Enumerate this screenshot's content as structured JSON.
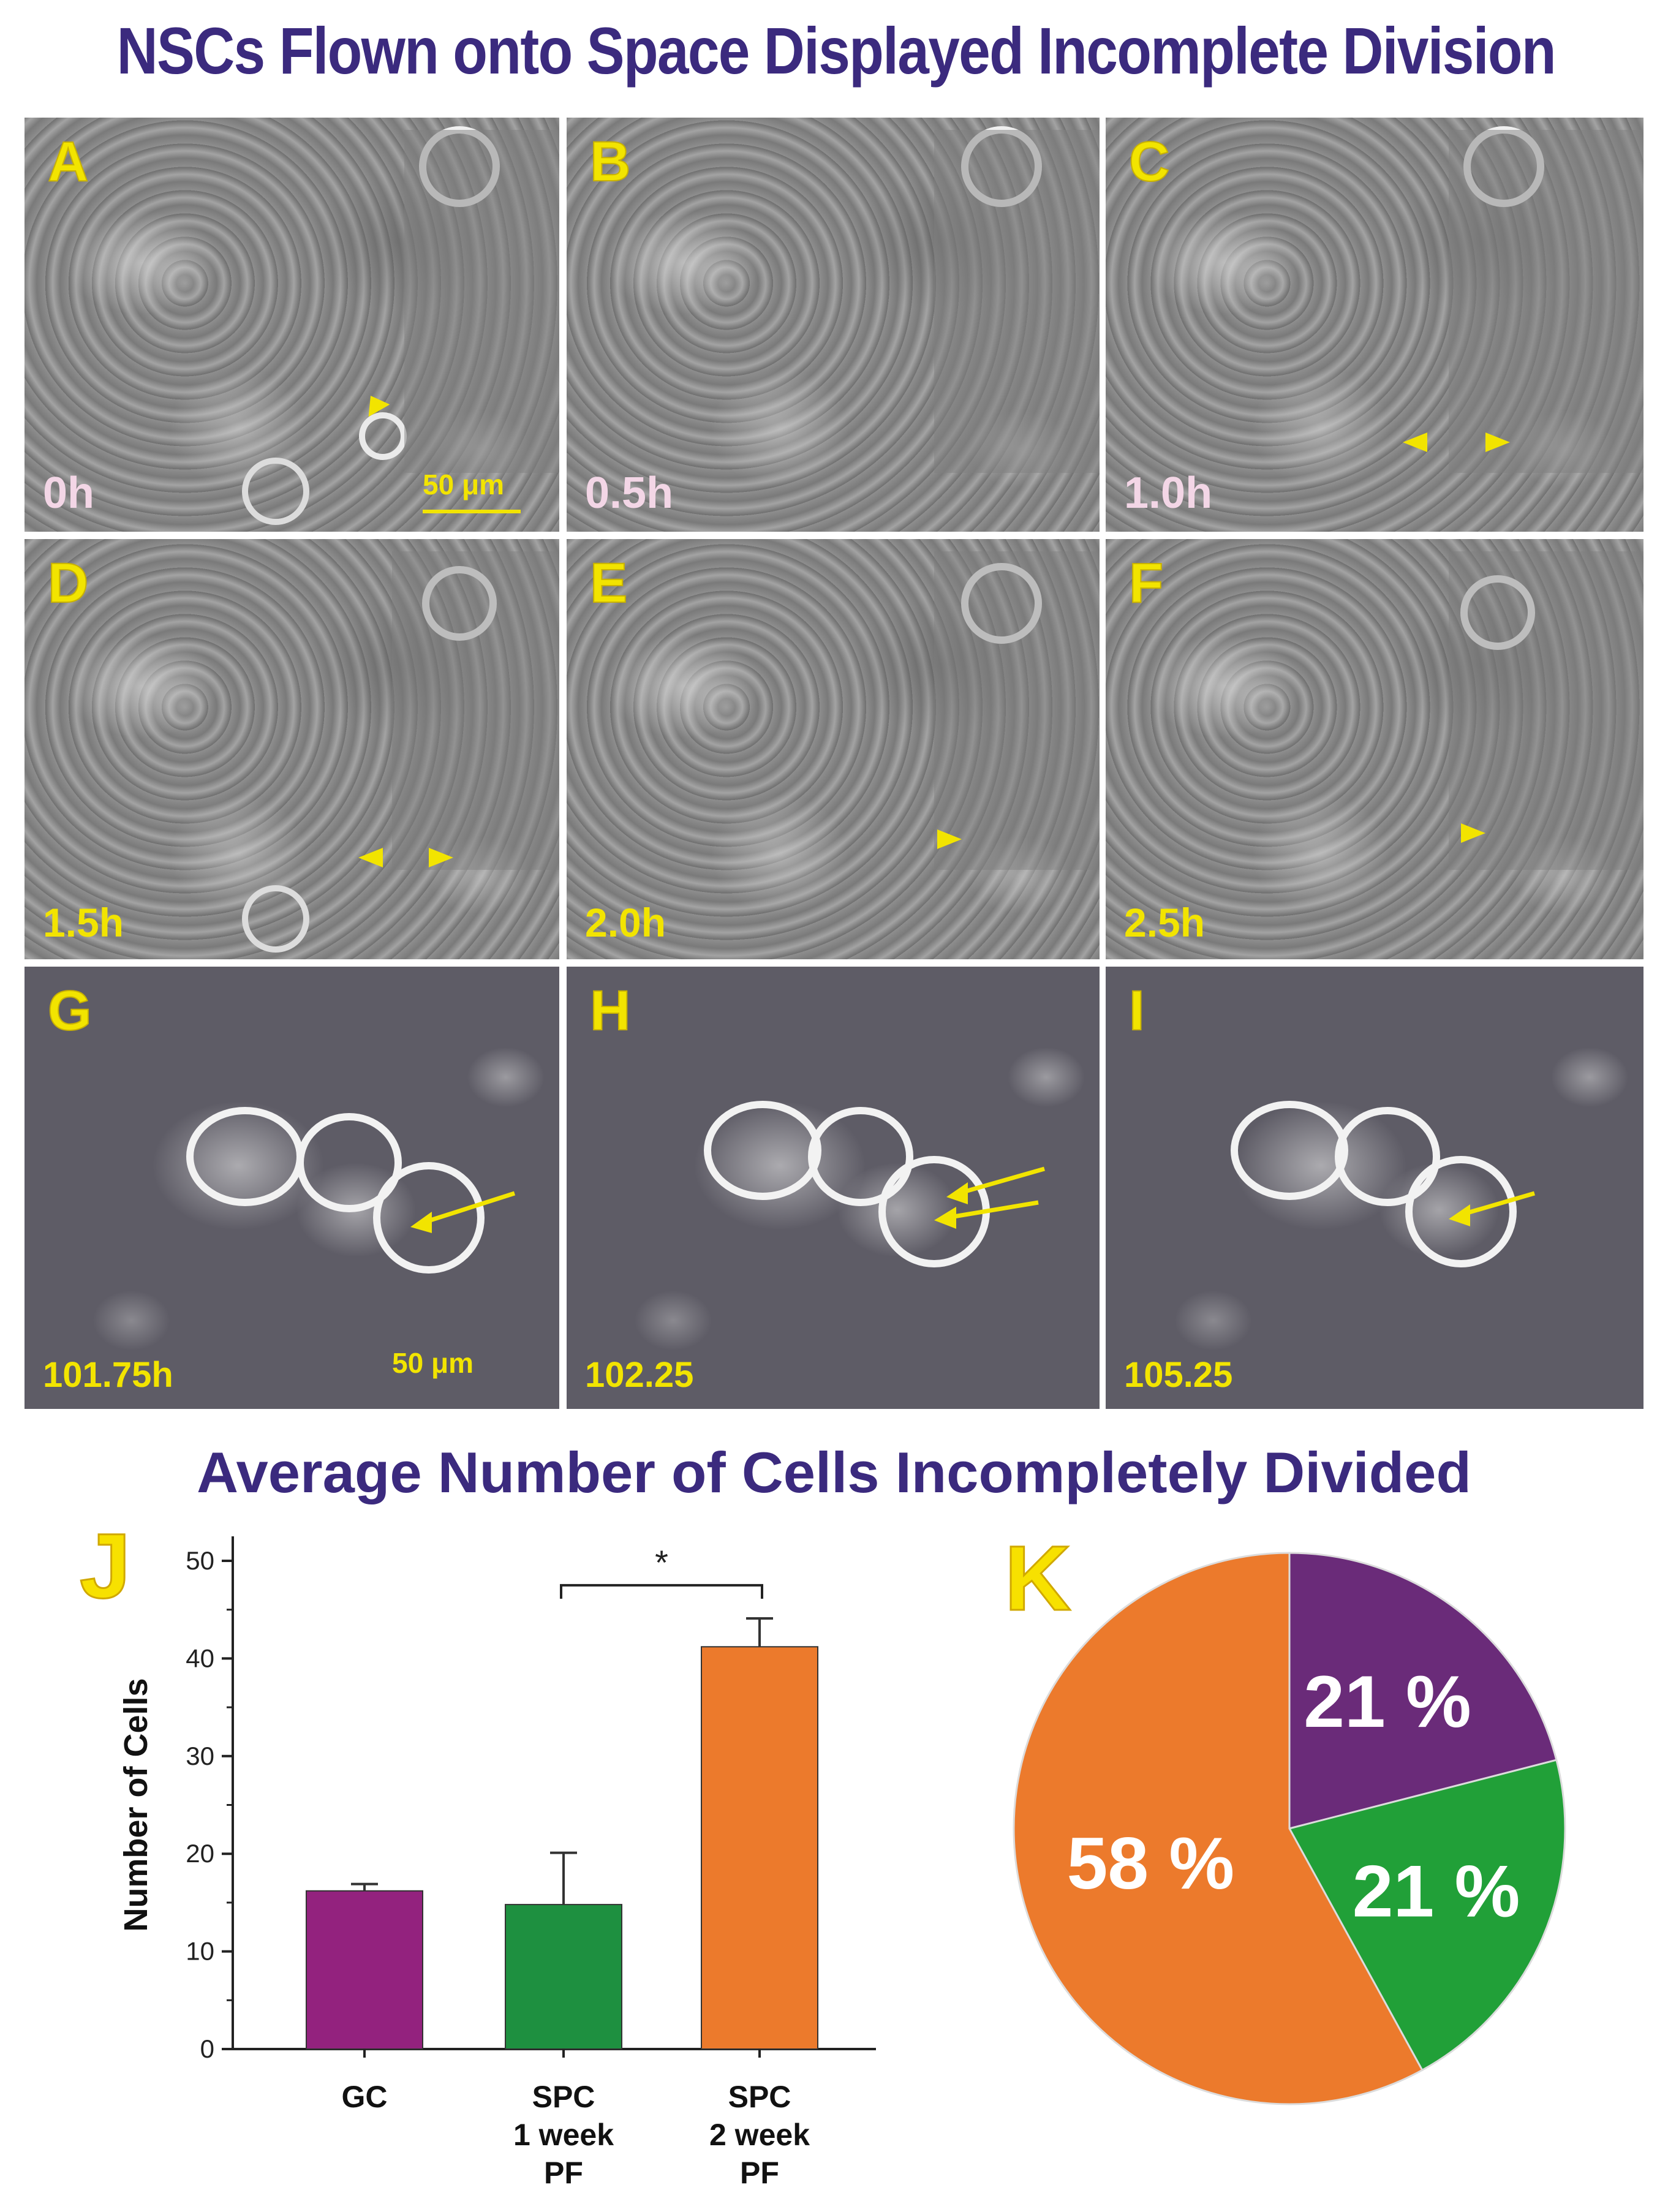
{
  "title": "NSCs Flown onto Space Displayed Incomplete Division",
  "panels": [
    {
      "letter": "A",
      "time": "0h"
    },
    {
      "letter": "B",
      "time": "0.5h"
    },
    {
      "letter": "C",
      "time": "1.0h"
    },
    {
      "letter": "D",
      "time": "1.5h"
    },
    {
      "letter": "E",
      "time": "2.0h"
    },
    {
      "letter": "F",
      "time": "2.5h"
    },
    {
      "letter": "G",
      "time": "101.75h"
    },
    {
      "letter": "H",
      "time": "102.25"
    },
    {
      "letter": "I",
      "time": "105.25"
    }
  ],
  "scale_bars": {
    "top": "50 μm",
    "bottom": "50 μm"
  },
  "colors": {
    "title": "#3b2a7e",
    "marker": "#f2e400",
    "gc": "#93227e",
    "spc1": "#1e9040",
    "spc2": "#ec7a2c",
    "pie_purple": "#6a2b79",
    "pie_green": "#21a038",
    "pie_orange": "#ec7a2c"
  },
  "chart_data": [
    {
      "type": "bar",
      "panel_letter": "J",
      "title": "Average Number of Cells Incompletely Divided",
      "categories": [
        "GC",
        "SPC\n1 week\nPF",
        "SPC\n2 week\nPF"
      ],
      "category_lines": [
        [
          "GC"
        ],
        [
          "SPC",
          "1 week",
          "PF"
        ],
        [
          "SPC",
          "2 week",
          "PF"
        ]
      ],
      "values": [
        16.2,
        14.8,
        41.2
      ],
      "errors": [
        0.7,
        5.3,
        2.9
      ],
      "ylabel": "Number of Cells",
      "xlabel": "",
      "ylim": [
        0,
        50
      ],
      "yticks": [
        0,
        10,
        20,
        30,
        40,
        50
      ],
      "significance": {
        "from": 1,
        "to": 2,
        "label": "*"
      }
    },
    {
      "type": "pie",
      "panel_letter": "K",
      "slices": [
        {
          "value": 21,
          "label": "21 %",
          "color": "#6a2b79"
        },
        {
          "value": 21,
          "label": "21 %",
          "color": "#21a038"
        },
        {
          "value": 58,
          "label": "58 %",
          "color": "#ec7a2c"
        }
      ]
    }
  ]
}
